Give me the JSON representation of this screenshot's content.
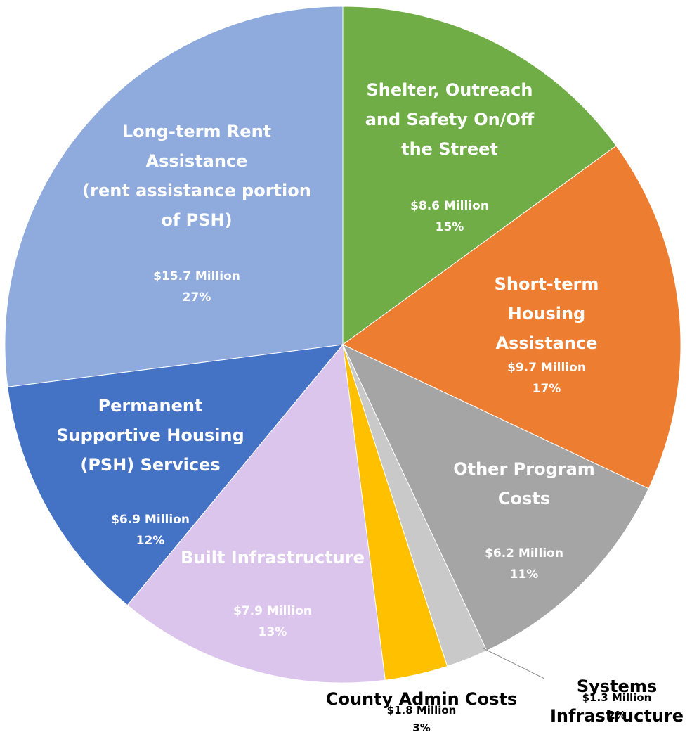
{
  "chart_data": {
    "type": "pie",
    "categories": [
      "Shelter, Outreach\nand Safety On/Off\nthe Street",
      "Short-term Housing\nAssistance",
      "Other Program\nCosts",
      "Systems Infrastructure",
      "County Admin Costs",
      "Built Infrastructure",
      "Permanent\nSupportive Housing\n(PSH) Services",
      "Long-term Rent\nAssistance\n(rent assistance portion\nof PSH)"
    ],
    "values": [
      15,
      17,
      11,
      2,
      3,
      13,
      12,
      27
    ],
    "value_labels": [
      "15%",
      "17%",
      "11%",
      "2%",
      "3%",
      "13%",
      "12%",
      "27%"
    ],
    "amount_labels": [
      "$8.6 Million",
      "$9.7 Million",
      "$6.2 Million",
      "$1.3 Million",
      "$1.8 Million",
      "$7.9 Million",
      "$6.9 Million",
      "$15.7 Million"
    ],
    "colors": [
      "#70ad47",
      "#ed7d31",
      "#a5a5a5",
      "#c9c9c9",
      "#ffc000",
      "#dcc5ec",
      "#4472c4",
      "#8faadc"
    ]
  }
}
